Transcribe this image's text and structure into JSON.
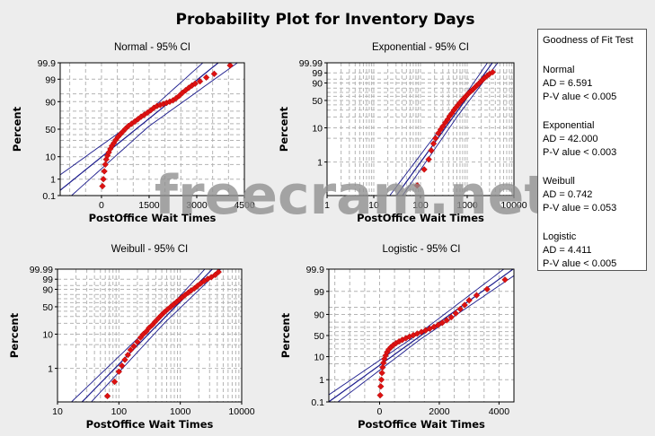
{
  "figure": {
    "title": "Probability Plot for Inventory Days",
    "watermark": "freecram.net"
  },
  "goodness_of_fit": {
    "title": "Goodness of Fit Test",
    "items": [
      {
        "name": "Normal",
        "ad": "AD = 6.591",
        "p": "P-V alue < 0.005"
      },
      {
        "name": "Exponential",
        "ad": "AD = 42.000",
        "p": "P-V alue < 0.003"
      },
      {
        "name": "Weibull",
        "ad": "AD = 0.742",
        "p": "P-V alue = 0.053"
      },
      {
        "name": "Logistic",
        "ad": "AD = 4.411",
        "p": "P-V alue < 0.005"
      }
    ]
  },
  "colors": {
    "points": "#dd1111",
    "fit_line": "#1a1a8c",
    "grid": "#b4b4b4",
    "frame": "#000000",
    "background": "#ededed",
    "plot_area": "#ffffff"
  },
  "chart_data": [
    {
      "type": "scatter",
      "title": "Normal - 95% CI",
      "xlabel": "PostOffice Wait Times",
      "ylabel": "Percent",
      "x_scale": "linear",
      "xlim": [
        -1300,
        4500
      ],
      "x_ticks": [
        "0",
        "1500",
        "3000",
        "4500"
      ],
      "y_scale": "normal-probability",
      "ylim": [
        0.1,
        99.9
      ],
      "y_ticks": [
        "0.1",
        "1",
        "10",
        "50",
        "90",
        "99",
        "99.9"
      ],
      "grid": true,
      "x": [
        30,
        60,
        90,
        120,
        150,
        190,
        230,
        280,
        330,
        390,
        450,
        520,
        600,
        680,
        760,
        850,
        950,
        1050,
        1150,
        1250,
        1350,
        1450,
        1550,
        1650,
        1750,
        1850,
        1950,
        2050,
        2150,
        2250,
        2350,
        2450,
        2550,
        2650,
        2750,
        2850,
        2950,
        3100,
        3300,
        3550,
        4050
      ],
      "y": [
        0.4,
        1,
        2.5,
        5,
        8,
        11,
        14,
        18,
        22,
        26,
        31,
        36,
        41,
        46,
        51,
        56,
        60,
        64,
        68,
        72,
        75,
        78,
        81,
        84,
        86,
        87,
        88,
        89,
        90,
        91,
        92.5,
        94,
        95.5,
        96.5,
        97.3,
        97.9,
        98.3,
        98.7,
        99.2,
        99.5,
        99.85
      ]
    },
    {
      "type": "scatter",
      "title": "Exponential - 95% CI",
      "xlabel": "PostOffice Wait Times",
      "ylabel": "Percent",
      "x_scale": "log",
      "xlim": [
        1,
        10000
      ],
      "x_ticks": [
        "1",
        "10",
        "100",
        "1000",
        "10000"
      ],
      "y_scale": "exponential-probability",
      "ylim": [
        0.1,
        99.99
      ],
      "y_ticks": [
        "1",
        "10",
        "50",
        "90",
        "99",
        "99.99"
      ],
      "grid": true,
      "x": [
        85,
        120,
        150,
        170,
        190,
        210,
        240,
        270,
        300,
        340,
        380,
        420,
        470,
        520,
        580,
        640,
        700,
        770,
        850,
        930,
        1020,
        1120,
        1230,
        1350,
        1480,
        1620,
        1780,
        1950,
        2150,
        2400,
        2700,
        3000,
        3500
      ],
      "y": [
        0.2,
        0.6,
        1.2,
        2.2,
        3.5,
        5,
        7,
        9,
        11,
        14,
        17,
        21,
        25,
        30,
        35,
        40,
        45,
        50,
        55,
        60,
        65,
        70,
        74,
        78,
        82,
        86,
        89,
        92,
        94.5,
        96.5,
        97.8,
        98.6,
        99.2
      ]
    },
    {
      "type": "scatter",
      "title": "Weibull - 95% CI",
      "xlabel": "PostOffice Wait Times",
      "ylabel": "Percent",
      "x_scale": "log",
      "xlim": [
        10,
        10000
      ],
      "x_ticks": [
        "10",
        "100",
        "1000",
        "10000"
      ],
      "y_scale": "weibull-probability",
      "ylim": [
        0.1,
        99.99
      ],
      "y_ticks": [
        "1",
        "10",
        "50",
        "90",
        "99",
        "99.99"
      ],
      "grid": true,
      "x": [
        65,
        85,
        100,
        112,
        125,
        140,
        155,
        175,
        200,
        225,
        250,
        280,
        310,
        350,
        390,
        440,
        490,
        550,
        620,
        700,
        780,
        870,
        970,
        1080,
        1200,
        1350,
        1500,
        1700,
        1900,
        2150,
        2450,
        2800,
        3200,
        3700,
        4200
      ],
      "y": [
        0.15,
        0.4,
        0.8,
        1.2,
        1.8,
        2.5,
        3.5,
        4.5,
        6,
        8,
        10,
        12,
        15,
        18,
        22,
        27,
        32,
        38,
        44,
        50,
        56,
        62,
        68,
        74,
        79,
        84,
        88,
        91.5,
        94.5,
        96.8,
        98.3,
        99.1,
        99.5,
        99.8,
        99.95
      ]
    },
    {
      "type": "scatter",
      "title": "Logistic - 95% CI",
      "xlabel": "PostOffice Wait Times",
      "ylabel": "Percent",
      "x_scale": "linear",
      "xlim": [
        -1700,
        4500
      ],
      "x_ticks": [
        "0",
        "2000",
        "4000"
      ],
      "y_scale": "logistic-probability",
      "ylim": [
        0.1,
        99.9
      ],
      "y_ticks": [
        "0.1",
        "1",
        "10",
        "50",
        "90",
        "99",
        "99.9"
      ],
      "grid": true,
      "x": [
        20,
        40,
        60,
        80,
        100,
        130,
        160,
        200,
        250,
        310,
        380,
        460,
        550,
        650,
        760,
        880,
        1000,
        1130,
        1260,
        1400,
        1540,
        1680,
        1820,
        1960,
        2100,
        2250,
        2400,
        2550,
        2700,
        2850,
        3000,
        3250,
        3600,
        4200
      ],
      "y": [
        0.2,
        0.5,
        1,
        2,
        3.5,
        5.5,
        8,
        11,
        15,
        19,
        23,
        27,
        31,
        35,
        39,
        43,
        47,
        51,
        55,
        59,
        63,
        67,
        71,
        75,
        79,
        83,
        87,
        91,
        94,
        96,
        97.5,
        98.5,
        99.2,
        99.7
      ]
    }
  ]
}
